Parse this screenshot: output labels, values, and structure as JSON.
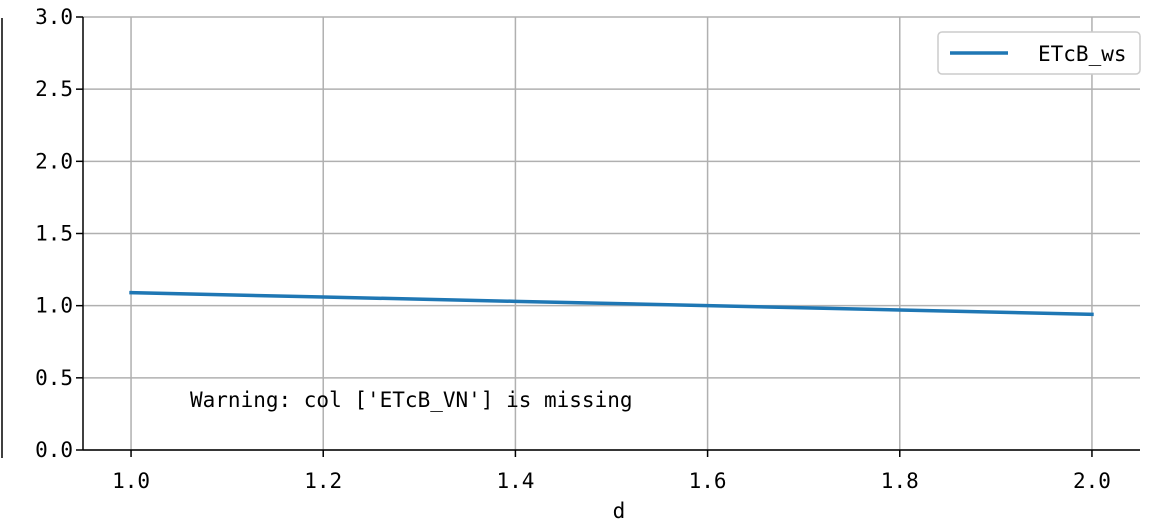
{
  "chart_data": {
    "type": "line",
    "title": "",
    "xlabel": "d",
    "ylabel": "",
    "x": [
      1.0,
      1.2,
      1.4,
      1.6,
      1.8,
      2.0
    ],
    "series": [
      {
        "name": "ETcB_ws",
        "color": "#1f77b4",
        "values": [
          1.09,
          1.06,
          1.03,
          1.0,
          0.97,
          0.94
        ]
      }
    ],
    "xlim": [
      0.95,
      2.05
    ],
    "ylim": [
      0.0,
      3.0
    ],
    "xticks": [
      1.0,
      1.2,
      1.4,
      1.6,
      1.8,
      2.0
    ],
    "xtick_labels": [
      "1.0",
      "1.2",
      "1.4",
      "1.6",
      "1.8",
      "2.0"
    ],
    "yticks": [
      0.0,
      0.5,
      1.0,
      1.5,
      2.0,
      2.5,
      3.0
    ],
    "ytick_labels": [
      "0.0",
      "0.5",
      "1.0",
      "1.5",
      "2.0",
      "2.5",
      "3.0"
    ],
    "grid": true,
    "legend": "top-right",
    "annotation": "Warning: col ['ETcB_VN'] is missing"
  }
}
